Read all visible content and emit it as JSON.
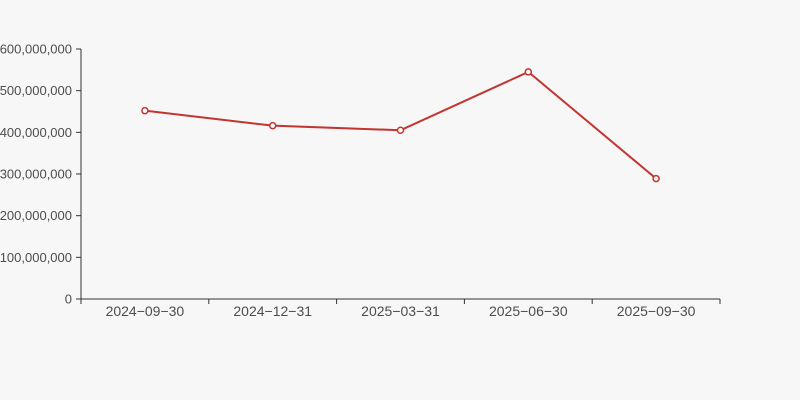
{
  "chart_data": {
    "type": "line",
    "title": "",
    "xlabel": "",
    "ylabel": "",
    "categories": [
      "2024−09−30",
      "2024−12−31",
      "2025−03−31",
      "2025−06−30",
      "2025−09−30"
    ],
    "series": [
      {
        "name": "value-series",
        "values": [
          452000000,
          416000000,
          405000000,
          545000000,
          289000000
        ],
        "color": "#c23531",
        "marker": "hollow-circle"
      }
    ],
    "ylim": [
      0,
      600000000
    ],
    "y_tick_interval": 100000000,
    "y_tick_labels": [
      "0",
      "100,000,000",
      "200,000,000",
      "300,000,000",
      "400,000,000",
      "500,000,000",
      "600,000,000"
    ],
    "grid": false,
    "legend_visible": false,
    "colors": {
      "background": "#f7f7f7",
      "axis_line": "#333333",
      "tick_label": "#4d4d4d",
      "marker_fill": "#ffffff"
    }
  }
}
